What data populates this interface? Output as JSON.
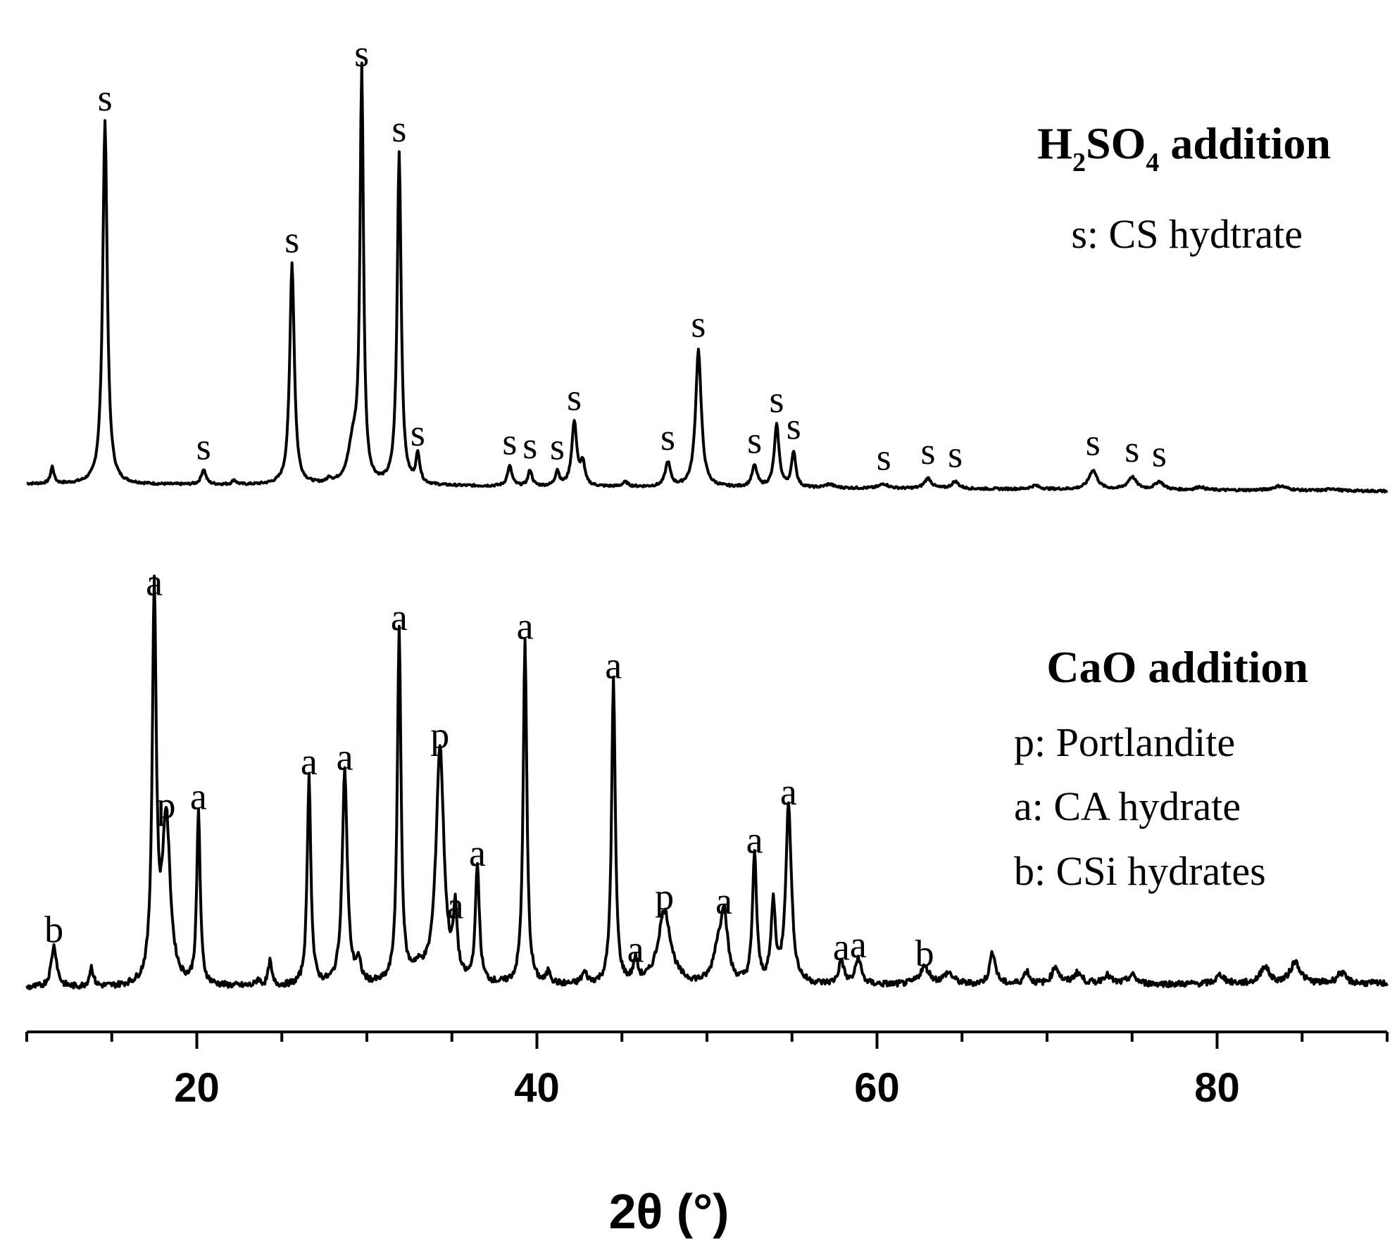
{
  "chart_data": {
    "type": "line",
    "xlabel": "2θ (°)",
    "xlim": [
      10,
      90
    ],
    "xticks": [
      20,
      40,
      60,
      80
    ],
    "grid": false,
    "series": [
      {
        "name": "H2SO4 addition",
        "title_main": "H",
        "title_sub1": "2",
        "title_mid": "SO",
        "title_sub2": "4",
        "title_end": " addition",
        "legend": [
          "s: CS hydtrate"
        ],
        "baseline": 1,
        "peaks": [
          {
            "x": 11.5,
            "h": 3.8,
            "w": 0.12,
            "label": ""
          },
          {
            "x": 14.6,
            "h": 82,
            "w": 0.16,
            "label": "s"
          },
          {
            "x": 20.4,
            "h": 3.4,
            "w": 0.16,
            "label": "s"
          },
          {
            "x": 22.2,
            "h": 1.0,
            "w": 0.14,
            "label": ""
          },
          {
            "x": 25.6,
            "h": 50,
            "w": 0.16,
            "label": "s"
          },
          {
            "x": 27.8,
            "h": 1.0,
            "w": 0.14,
            "label": ""
          },
          {
            "x": 29.2,
            "h": 9,
            "w": 0.35,
            "label": ""
          },
          {
            "x": 29.7,
            "h": 92,
            "w": 0.12,
            "label": "s"
          },
          {
            "x": 31.9,
            "h": 75,
            "w": 0.14,
            "label": "s"
          },
          {
            "x": 33.0,
            "h": 6.5,
            "w": 0.14,
            "label": "s"
          },
          {
            "x": 38.4,
            "h": 4.5,
            "w": 0.16,
            "label": "s"
          },
          {
            "x": 39.6,
            "h": 3.6,
            "w": 0.14,
            "label": "s"
          },
          {
            "x": 41.2,
            "h": 3.4,
            "w": 0.14,
            "label": "s"
          },
          {
            "x": 42.2,
            "h": 14.5,
            "w": 0.18,
            "label": "s"
          },
          {
            "x": 42.7,
            "h": 5,
            "w": 0.14,
            "label": ""
          },
          {
            "x": 45.2,
            "h": 1.0,
            "w": 0.2,
            "label": ""
          },
          {
            "x": 47.7,
            "h": 5.5,
            "w": 0.18,
            "label": "s"
          },
          {
            "x": 49.5,
            "h": 31,
            "w": 0.2,
            "label": "s"
          },
          {
            "x": 52.8,
            "h": 4.8,
            "w": 0.18,
            "label": "s"
          },
          {
            "x": 54.1,
            "h": 14,
            "w": 0.17,
            "label": "s"
          },
          {
            "x": 55.1,
            "h": 8,
            "w": 0.15,
            "label": "s"
          },
          {
            "x": 57.2,
            "h": 0.8,
            "w": 0.3,
            "label": ""
          },
          {
            "x": 60.4,
            "h": 1.0,
            "w": 0.3,
            "label": "s"
          },
          {
            "x": 63.0,
            "h": 2.3,
            "w": 0.25,
            "label": "s"
          },
          {
            "x": 64.6,
            "h": 1.6,
            "w": 0.25,
            "label": "s"
          },
          {
            "x": 69.3,
            "h": 0.8,
            "w": 0.3,
            "label": ""
          },
          {
            "x": 72.7,
            "h": 4.3,
            "w": 0.3,
            "label": "s"
          },
          {
            "x": 75.0,
            "h": 2.8,
            "w": 0.3,
            "label": "s"
          },
          {
            "x": 76.6,
            "h": 1.8,
            "w": 0.3,
            "label": "s"
          },
          {
            "x": 79.0,
            "h": 0.7,
            "w": 0.3,
            "label": ""
          },
          {
            "x": 83.7,
            "h": 1.0,
            "w": 0.5,
            "label": ""
          },
          {
            "x": 86.8,
            "h": 0.5,
            "w": 0.3,
            "label": ""
          }
        ]
      },
      {
        "name": "CaO addition",
        "title_main": "CaO addition",
        "legend": [
          "p: Portlandite",
          "a: CA hydrate",
          "b: CSi hydrates"
        ],
        "baseline": 3,
        "peaks": [
          {
            "x": 11.6,
            "h": 9.5,
            "w": 0.2,
            "label": "b"
          },
          {
            "x": 13.8,
            "h": 4.5,
            "w": 0.14,
            "label": ""
          },
          {
            "x": 17.5,
            "h": 89,
            "w": 0.14,
            "label": "a"
          },
          {
            "x": 18.2,
            "h": 38,
            "w": 0.28,
            "label": "p"
          },
          {
            "x": 20.1,
            "h": 40,
            "w": 0.12,
            "label": "a"
          },
          {
            "x": 23.6,
            "h": 1.5,
            "w": 0.14,
            "label": ""
          },
          {
            "x": 24.3,
            "h": 5.5,
            "w": 0.12,
            "label": ""
          },
          {
            "x": 26.6,
            "h": 48,
            "w": 0.13,
            "label": "a"
          },
          {
            "x": 28.7,
            "h": 49,
            "w": 0.18,
            "label": "a"
          },
          {
            "x": 29.5,
            "h": 4.5,
            "w": 0.18,
            "label": ""
          },
          {
            "x": 31.9,
            "h": 81,
            "w": 0.13,
            "label": "a"
          },
          {
            "x": 33.0,
            "h": 3,
            "w": 0.5,
            "label": ""
          },
          {
            "x": 34.3,
            "h": 54,
            "w": 0.28,
            "label": "p"
          },
          {
            "x": 35.2,
            "h": 15,
            "w": 0.14,
            "label": "a"
          },
          {
            "x": 36.5,
            "h": 27,
            "w": 0.14,
            "label": "a"
          },
          {
            "x": 39.3,
            "h": 79,
            "w": 0.13,
            "label": "a"
          },
          {
            "x": 40.7,
            "h": 3,
            "w": 0.14,
            "label": ""
          },
          {
            "x": 42.8,
            "h": 2.5,
            "w": 0.2,
            "label": ""
          },
          {
            "x": 44.5,
            "h": 70,
            "w": 0.13,
            "label": "a"
          },
          {
            "x": 45.8,
            "h": 5,
            "w": 0.15,
            "label": "a"
          },
          {
            "x": 47.5,
            "h": 17,
            "w": 0.45,
            "label": "p"
          },
          {
            "x": 50.6,
            "h": 6,
            "w": 0.3,
            "label": ""
          },
          {
            "x": 51.0,
            "h": 16,
            "w": 0.25,
            "label": "a"
          },
          {
            "x": 52.8,
            "h": 30,
            "w": 0.14,
            "label": "a"
          },
          {
            "x": 53.9,
            "h": 18,
            "w": 0.15,
            "label": ""
          },
          {
            "x": 54.8,
            "h": 41,
            "w": 0.2,
            "label": "a"
          },
          {
            "x": 57.9,
            "h": 5.5,
            "w": 0.18,
            "label": "a"
          },
          {
            "x": 58.9,
            "h": 6,
            "w": 0.2,
            "label": "a"
          },
          {
            "x": 62.8,
            "h": 4.0,
            "w": 0.35,
            "label": "b"
          },
          {
            "x": 64.2,
            "h": 2.5,
            "w": 0.35,
            "label": ""
          },
          {
            "x": 66.8,
            "h": 7.5,
            "w": 0.2,
            "label": ""
          },
          {
            "x": 68.8,
            "h": 3,
            "w": 0.2,
            "label": ""
          },
          {
            "x": 70.5,
            "h": 4,
            "w": 0.25,
            "label": ""
          },
          {
            "x": 71.8,
            "h": 2.5,
            "w": 0.3,
            "label": ""
          },
          {
            "x": 73.5,
            "h": 2,
            "w": 0.3,
            "label": ""
          },
          {
            "x": 75.0,
            "h": 2,
            "w": 0.3,
            "label": ""
          },
          {
            "x": 80.2,
            "h": 2,
            "w": 0.3,
            "label": ""
          },
          {
            "x": 82.8,
            "h": 4,
            "w": 0.3,
            "label": ""
          },
          {
            "x": 84.6,
            "h": 5,
            "w": 0.35,
            "label": ""
          },
          {
            "x": 87.3,
            "h": 2.5,
            "w": 0.3,
            "label": ""
          }
        ]
      }
    ]
  },
  "colors": {
    "line": "#000000",
    "background": "#ffffff"
  }
}
